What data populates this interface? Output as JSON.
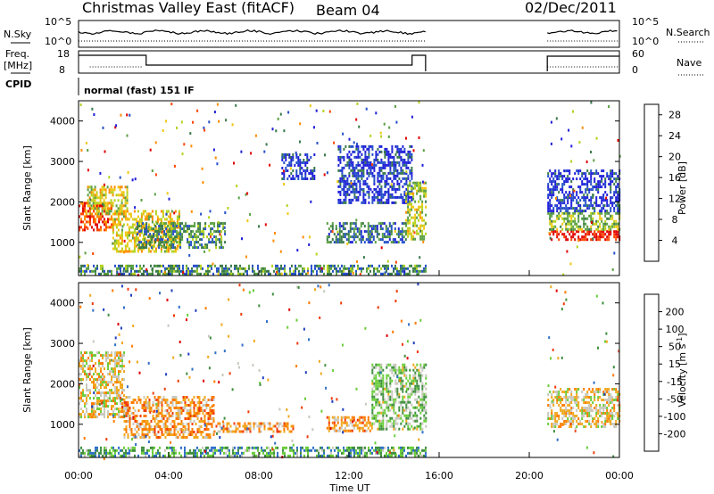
{
  "header": {
    "station": "Christmas Valley East (fitACF)",
    "beam": "Beam 04",
    "date": "02/Dec/2011"
  },
  "status_panels": {
    "nsky": {
      "label": "N.Sky",
      "ticks": [
        "10^5",
        "10^0"
      ]
    },
    "nsearch": {
      "label": "N.Search",
      "ticks": [
        "10^5",
        "10^0"
      ]
    },
    "freq": {
      "label_lines": [
        "Freq.",
        "[MHz]"
      ],
      "ticks": [
        "18",
        "8"
      ]
    },
    "nave": {
      "label": "Nave",
      "ticks": [
        "60",
        "0"
      ]
    },
    "cpid": {
      "label": "CPID",
      "mode": "normal (fast) 151 IF"
    }
  },
  "colors": {
    "power": [
      "#1f1fd8",
      "#2550c8",
      "#3a7a4a",
      "#5aa043",
      "#b4d21e",
      "#f0c814",
      "#ff8c00",
      "#ff4400",
      "#e00000"
    ],
    "velocity": [
      "#1f3fc0",
      "#2f6fc8",
      "#3f8f3f",
      "#6acd3a",
      "#c8c8be",
      "#f0a81e",
      "#ff7a00",
      "#f03a0a",
      "#e00000"
    ]
  },
  "chart_data": [
    {
      "type": "heatmap",
      "name": "power",
      "ylabel": "Slant Range [km]",
      "yticks": [
        1000,
        2000,
        3000,
        4000
      ],
      "ylim": [
        180,
        4500
      ],
      "xlim": [
        0,
        24
      ],
      "colorbar": {
        "label": "Power [dB]",
        "ticks": [
          4,
          8,
          12,
          16,
          20,
          24,
          28
        ],
        "range": [
          0,
          30
        ]
      },
      "regions": [
        {
          "t": [
            0.0,
            1.5
          ],
          "r": [
            1300,
            2000
          ],
          "level": 0.85
        },
        {
          "t": [
            0.3,
            2.2
          ],
          "r": [
            1700,
            2400
          ],
          "level": 0.55
        },
        {
          "t": [
            1.5,
            4.5
          ],
          "r": [
            800,
            1800
          ],
          "level": 0.6
        },
        {
          "t": [
            2.5,
            6.5
          ],
          "r": [
            900,
            1500
          ],
          "level": 0.3
        },
        {
          "t": [
            9.0,
            10.5
          ],
          "r": [
            2600,
            3200
          ],
          "level": 0.1
        },
        {
          "t": [
            11.0,
            14.5
          ],
          "r": [
            1000,
            1500
          ],
          "level": 0.25
        },
        {
          "t": [
            11.5,
            14.8
          ],
          "r": [
            2000,
            3400
          ],
          "level": 0.1
        },
        {
          "t": [
            14.5,
            15.4
          ],
          "r": [
            1100,
            2500
          ],
          "level": 0.5
        },
        {
          "t": [
            0.0,
            15.4
          ],
          "r": [
            200,
            450
          ],
          "level": 0.3
        },
        {
          "t": [
            20.8,
            24.0
          ],
          "r": [
            1050,
            1300
          ],
          "level": 0.95
        },
        {
          "t": [
            20.8,
            24.0
          ],
          "r": [
            1300,
            1750
          ],
          "level": 0.45
        },
        {
          "t": [
            20.8,
            24.0
          ],
          "r": [
            1750,
            2800
          ],
          "level": 0.1
        }
      ]
    },
    {
      "type": "heatmap",
      "name": "velocity",
      "ylabel": "Slant Range [km]",
      "xlabel": "Time UT",
      "yticks": [
        1000,
        2000,
        3000,
        4000
      ],
      "xticks": [
        "00:00",
        "04:00",
        "08:00",
        "12:00",
        "16:00",
        "20:00",
        "00:00"
      ],
      "ylim": [
        180,
        4500
      ],
      "xlim": [
        0,
        24
      ],
      "colorbar": {
        "label": "Velocity [m s-1]",
        "label_main": "Velocity [m s",
        "label_sup": "-1",
        "label_end": "]",
        "ticks": [
          "200",
          "100",
          "50",
          "15",
          "-15",
          "-50",
          "-100",
          "-200"
        ]
      },
      "regions": [
        {
          "t": [
            0.0,
            2.0
          ],
          "r": [
            1200,
            2800
          ],
          "level": 0.45
        },
        {
          "t": [
            2.0,
            6.0
          ],
          "r": [
            700,
            1700
          ],
          "level": 0.35
        },
        {
          "t": [
            6.0,
            9.5
          ],
          "r": [
            800,
            1050
          ],
          "level": 0.35
        },
        {
          "t": [
            11.0,
            13.0
          ],
          "r": [
            850,
            1200
          ],
          "level": 0.35
        },
        {
          "t": [
            13.0,
            15.4
          ],
          "r": [
            900,
            2500
          ],
          "level": 0.6
        },
        {
          "t": [
            0.0,
            15.4
          ],
          "r": [
            200,
            450
          ],
          "level": 0.7
        },
        {
          "t": [
            20.8,
            24.0
          ],
          "r": [
            950,
            1900
          ],
          "level": 0.45
        }
      ]
    }
  ]
}
